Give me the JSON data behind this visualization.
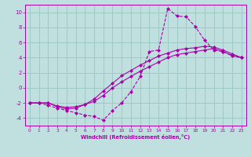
{
  "xlabel": "Windchill (Refroidissement éolien,°C)",
  "bg_color": "#c0e0e0",
  "grid_color": "#a0c8c8",
  "line_color": "#aa00aa",
  "xlim": [
    -0.5,
    23.5
  ],
  "ylim": [
    -5.0,
    11.0
  ],
  "xticks": [
    0,
    1,
    2,
    3,
    4,
    5,
    6,
    7,
    8,
    9,
    10,
    11,
    12,
    13,
    14,
    15,
    16,
    17,
    18,
    19,
    20,
    21,
    22,
    23
  ],
  "yticks": [
    -4,
    -2,
    0,
    2,
    4,
    6,
    8,
    10
  ],
  "line1_x": [
    0,
    1,
    2,
    3,
    4,
    5,
    6,
    7,
    8,
    9,
    10,
    11,
    12,
    13,
    14,
    15,
    16,
    17,
    18,
    19,
    20,
    21,
    22,
    23
  ],
  "line1_y": [
    -2.0,
    -2.0,
    -2.3,
    -2.7,
    -3.0,
    -3.3,
    -3.6,
    -3.8,
    -4.3,
    -3.0,
    -2.0,
    -0.5,
    1.5,
    4.8,
    5.0,
    10.5,
    9.5,
    9.4,
    8.1,
    6.3,
    5.0,
    4.8,
    4.2,
    4.0
  ],
  "line2_x": [
    0,
    1,
    2,
    3,
    4,
    5,
    6,
    7,
    8,
    9,
    10,
    11,
    12,
    13,
    14,
    15,
    16,
    17,
    18,
    19,
    20,
    21,
    22,
    23
  ],
  "line2_y": [
    -2.0,
    -2.0,
    -2.0,
    -2.5,
    -2.8,
    -2.7,
    -2.2,
    -1.5,
    -0.4,
    0.6,
    1.6,
    2.3,
    3.0,
    3.6,
    4.2,
    4.6,
    5.0,
    5.2,
    5.3,
    5.5,
    5.4,
    5.0,
    4.5,
    4.0
  ],
  "line3_x": [
    0,
    1,
    2,
    3,
    4,
    5,
    6,
    7,
    8,
    9,
    10,
    11,
    12,
    13,
    14,
    15,
    16,
    17,
    18,
    19,
    20,
    21,
    22,
    23
  ],
  "line3_y": [
    -2.0,
    -2.0,
    -2.0,
    -2.4,
    -2.6,
    -2.5,
    -2.2,
    -1.8,
    -1.0,
    0.0,
    0.8,
    1.5,
    2.2,
    2.8,
    3.4,
    4.0,
    4.4,
    4.6,
    4.8,
    5.0,
    5.2,
    4.8,
    4.3,
    4.0
  ]
}
